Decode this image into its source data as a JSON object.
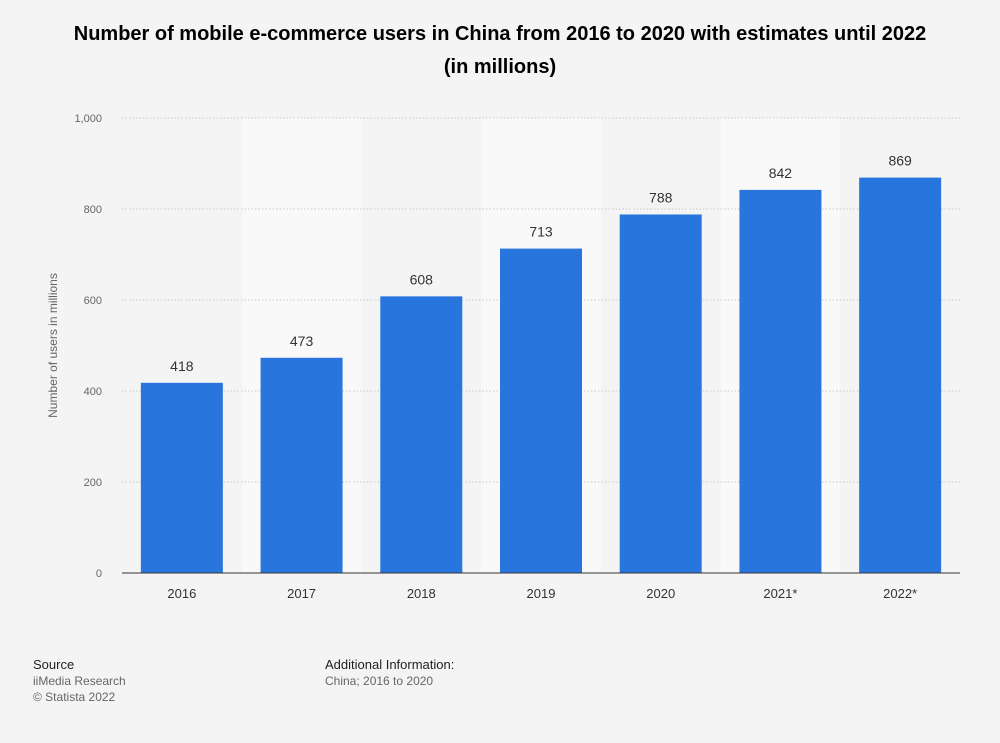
{
  "chart_data": {
    "type": "bar",
    "title": "Number of mobile e-commerce users in China from 2016 to 2020 with estimates until 2022 (in millions)",
    "xlabel": "",
    "ylabel": "Number of users in millions",
    "categories": [
      "2016",
      "2017",
      "2018",
      "2019",
      "2020",
      "2021*",
      "2022*"
    ],
    "values": [
      418,
      473,
      608,
      713,
      788,
      842,
      869
    ],
    "data_labels": [
      "418",
      "473",
      "608",
      "713",
      "788",
      "842",
      "869"
    ],
    "ylim": [
      0,
      1000
    ],
    "yticks": [
      0,
      200,
      400,
      600,
      800,
      1000
    ],
    "ytick_labels": [
      "0",
      "200",
      "400",
      "600",
      "800",
      "1,000"
    ],
    "grid": true,
    "legend": "none",
    "bar_color": "#2876dd",
    "band_color": "#f9f9f9"
  },
  "footer": {
    "source_heading": "Source",
    "source_lines": [
      "iiMedia Research",
      "© Statista 2022"
    ],
    "info_heading": "Additional Information:",
    "info_text": "China; 2016 to 2020"
  }
}
